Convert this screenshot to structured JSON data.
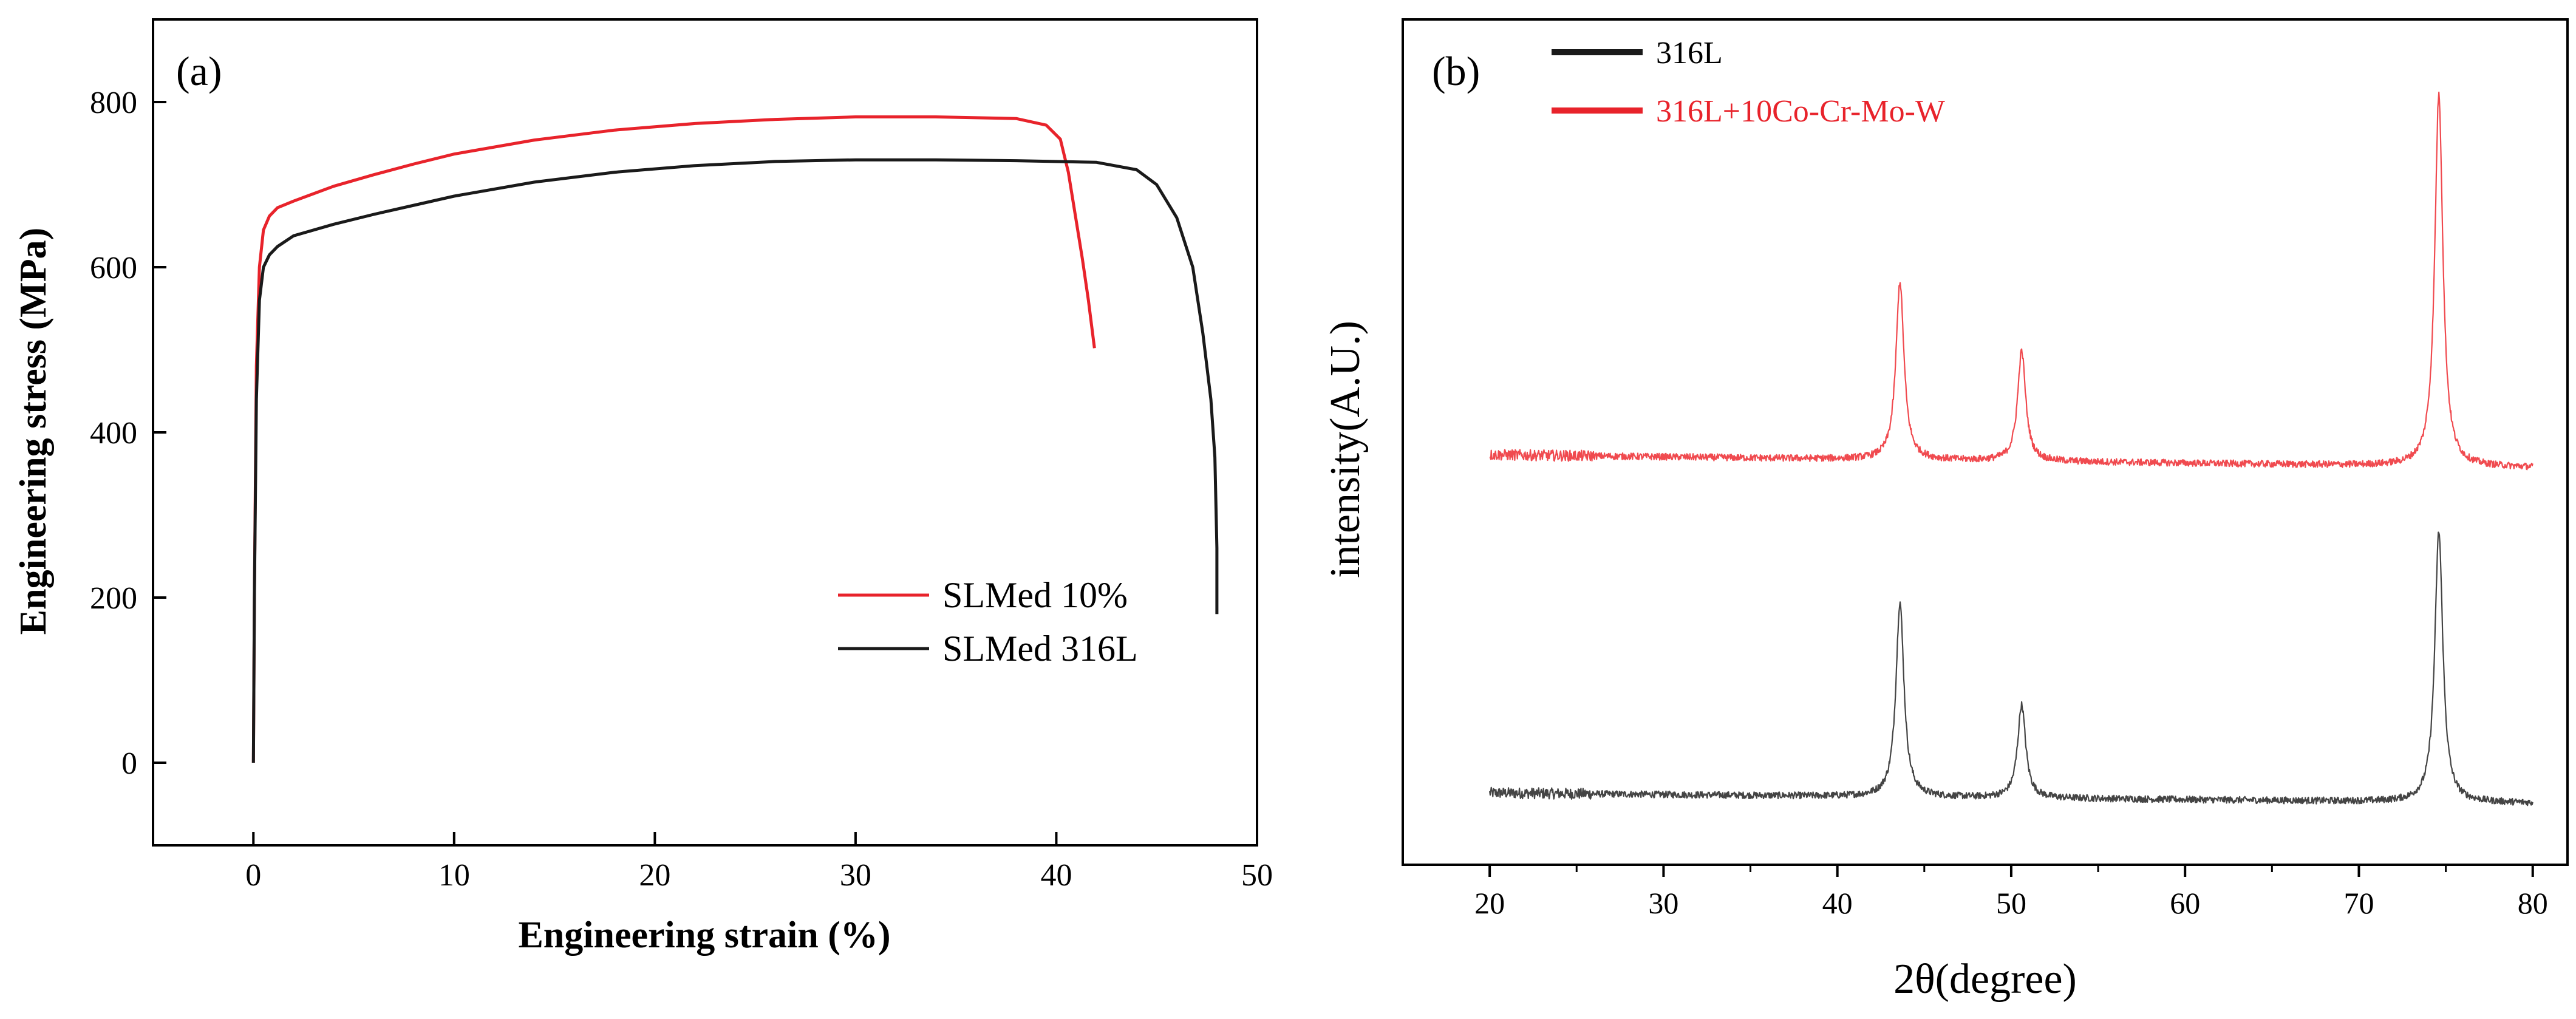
{
  "chart_data": [
    {
      "id": "a",
      "type": "line",
      "panel_label": "(a)",
      "xlabel": "Engineering strain (%)",
      "ylabel": "Engineering stress (MPa)",
      "xlim": [
        -5,
        50
      ],
      "ylim": [
        -100,
        900
      ],
      "xticks": [
        0,
        10,
        20,
        30,
        40,
        50
      ],
      "yticks": [
        0,
        200,
        400,
        600,
        800
      ],
      "legend_position": "lower-right",
      "series": [
        {
          "name": "SLMed 10%",
          "color": "#e8232b",
          "x": [
            0,
            0.05,
            0.15,
            0.3,
            0.5,
            0.8,
            1.2,
            2,
            4,
            6,
            8,
            10,
            14,
            18,
            22,
            26,
            30,
            34,
            38,
            39.5,
            40.2,
            40.6,
            40.9,
            41.3,
            41.6,
            41.9
          ],
          "y": [
            0,
            200,
            480,
            600,
            645,
            662,
            672,
            680,
            698,
            712,
            725,
            737,
            754,
            766,
            774,
            779,
            782,
            782,
            780,
            772,
            755,
            715,
            670,
            610,
            560,
            502
          ]
        },
        {
          "name": "SLMed 316L",
          "color": "#1a1a1a",
          "x": [
            0,
            0.05,
            0.15,
            0.3,
            0.5,
            0.8,
            1.2,
            2,
            4,
            6,
            8,
            10,
            14,
            18,
            22,
            26,
            30,
            34,
            38,
            42,
            44,
            45,
            46,
            46.8,
            47.3,
            47.7,
            47.9,
            48.0,
            48.0
          ],
          "y": [
            0,
            200,
            440,
            560,
            600,
            615,
            625,
            638,
            652,
            664,
            675,
            686,
            703,
            715,
            723,
            728,
            730,
            730,
            729,
            727,
            718,
            700,
            660,
            600,
            520,
            440,
            370,
            260,
            180
          ]
        }
      ]
    },
    {
      "id": "b",
      "type": "line",
      "panel_label": "(b)",
      "xlabel": "2θ(degree)",
      "ylabel": "intensity(A.U.)",
      "xlim": [
        15,
        82
      ],
      "ylim": [
        0,
        100
      ],
      "xticks": [
        20,
        30,
        40,
        50,
        60,
        70,
        80
      ],
      "legend_position": "top-left",
      "series": [
        {
          "name": "316L",
          "color": "#1a1a1a",
          "baseline": 8.5,
          "slope": -0.02,
          "peaks": [
            {
              "x": 43.6,
              "height": 23
            },
            {
              "x": 50.6,
              "height": 11
            },
            {
              "x": 74.6,
              "height": 32
            }
          ]
        },
        {
          "name": "316L+10Co-Cr-Mo-W",
          "color": "#e8232b",
          "baseline": 48.5,
          "slope": -0.025,
          "peaks": [
            {
              "x": 43.6,
              "height": 21
            },
            {
              "x": 50.6,
              "height": 13
            },
            {
              "x": 74.6,
              "height": 44
            }
          ]
        }
      ]
    }
  ]
}
